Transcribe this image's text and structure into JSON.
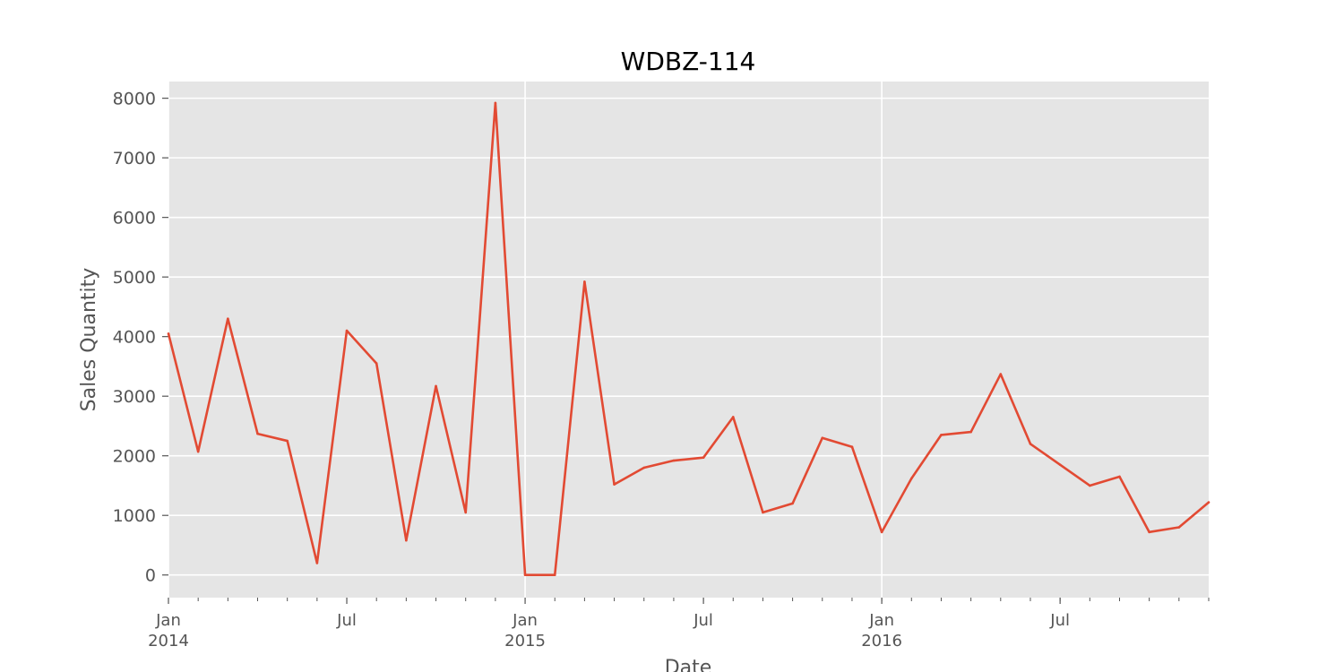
{
  "chart_data": {
    "type": "line",
    "title": "WDBZ-114",
    "xlabel": "Date",
    "ylabel": "Sales Quantity",
    "ylim": [
      -380,
      8280
    ],
    "xlim": [
      "2014-01",
      "2016-12"
    ],
    "grid": true,
    "colors": {
      "line": "#E24A33",
      "background": "#E5E5E5",
      "grid": "#FFFFFF",
      "text": "#555555"
    },
    "y_ticks": [
      0,
      1000,
      2000,
      3000,
      4000,
      5000,
      6000,
      7000,
      8000
    ],
    "x_ticks": [
      {
        "date": "2014-01",
        "label": "Jan",
        "sublabel": "2014",
        "major": true
      },
      {
        "date": "2014-07",
        "label": "Jul",
        "sublabel": "",
        "major": false
      },
      {
        "date": "2015-01",
        "label": "Jan",
        "sublabel": "2015",
        "major": true
      },
      {
        "date": "2015-07",
        "label": "Jul",
        "sublabel": "",
        "major": false
      },
      {
        "date": "2016-01",
        "label": "Jan",
        "sublabel": "2016",
        "major": true
      },
      {
        "date": "2016-07",
        "label": "Jul",
        "sublabel": "",
        "major": false
      }
    ],
    "series": [
      {
        "x": [
          "2014-01",
          "2014-02",
          "2014-03",
          "2014-04",
          "2014-05",
          "2014-06",
          "2014-07",
          "2014-08",
          "2014-09",
          "2014-10",
          "2014-11",
          "2014-12",
          "2015-01",
          "2015-02",
          "2015-03",
          "2015-04",
          "2015-05",
          "2015-06",
          "2015-07",
          "2015-08",
          "2015-09",
          "2015-10",
          "2015-11",
          "2015-12",
          "2016-01",
          "2016-02",
          "2016-03",
          "2016-04",
          "2016-05",
          "2016-06",
          "2016-07",
          "2016-08",
          "2016-09",
          "2016-10",
          "2016-11",
          "2016-12"
        ],
        "values": [
          4050,
          2070,
          4300,
          2370,
          2250,
          200,
          4100,
          3550,
          580,
          3170,
          1050,
          7920,
          0,
          0,
          4920,
          1520,
          1800,
          1920,
          1970,
          2650,
          1050,
          1200,
          2300,
          2150,
          720,
          1620,
          2350,
          2400,
          3370,
          2200,
          1850,
          1500,
          1650,
          720,
          800,
          1220
        ]
      }
    ]
  }
}
